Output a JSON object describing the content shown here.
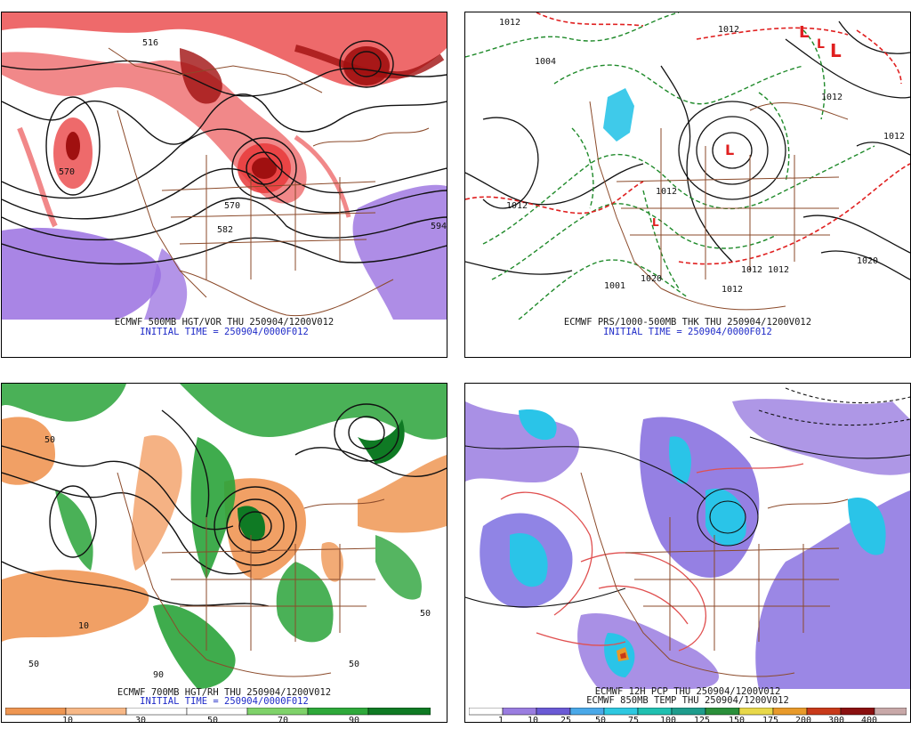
{
  "panels": [
    {
      "id": "500mb",
      "caption": "ECMWF 500MB HGT/VOR THU 250904/1200V012",
      "init": "INITIAL TIME = 250904/0000F012",
      "contour_labels": [
        "516",
        "570",
        "582",
        "594",
        "570"
      ]
    },
    {
      "id": "prs",
      "caption": "ECMWF PRS/1000-500MB THK THU 250904/1200V012",
      "init": "INITIAL TIME = 250904/0000F012",
      "contour_labels": [
        "1012",
        "1012",
        "1004",
        "1012",
        "1012",
        "1012",
        "1020",
        "1012",
        "1001",
        "1012",
        "1020",
        "1012",
        "1012"
      ]
    },
    {
      "id": "700mb",
      "caption": "ECMWF 700MB HGT/RH THU 250904/1200V012",
      "init": "INITIAL TIME = 250904/0000F012",
      "colorbar": {
        "labels": [
          "10",
          "30",
          "50",
          "70",
          "90"
        ],
        "colors": [
          "#ee9652",
          "#f7b887",
          "#ffffff",
          "#ffffff",
          "#7fd26a",
          "#2ea83a",
          "#0f7a24"
        ]
      },
      "contour_labels": [
        "50",
        "10",
        "90",
        "50",
        "50",
        "50"
      ]
    },
    {
      "id": "pcp",
      "caption": "ECMWF 12H PCP THU 250904/1200V012",
      "caption2": "ECMWF 850MB TEMP THU 250904/1200V012",
      "colorbar": {
        "labels": [
          "1",
          "10",
          "25",
          "50",
          "75",
          "100",
          "125",
          "150",
          "175",
          "200",
          "300",
          "400"
        ],
        "colors": [
          "#ffffff",
          "#9a7de0",
          "#6a5ad5",
          "#4aa8e8",
          "#2ec8e0",
          "#20c0b0",
          "#1e9c8c",
          "#2a8f3a",
          "#e8d84a",
          "#e89a2a",
          "#c83a1a",
          "#8a1010",
          "#c8a8a8"
        ]
      }
    }
  ],
  "colors": {
    "vorticity": "#e8383a",
    "vorticity_dark": "#a01010",
    "neg_vort": "#9a70e0",
    "state_lines": "#8b4a2a",
    "contours": "#111111",
    "thickness_green": "#1f8a2a",
    "thickness_red": "#e02020",
    "high_rh": "#2aa33a",
    "low_rh": "#ef9654",
    "temp_red": "#e05050",
    "precip_blue": "#7c6ee0",
    "precip_cyan": "#2ac4e8"
  }
}
